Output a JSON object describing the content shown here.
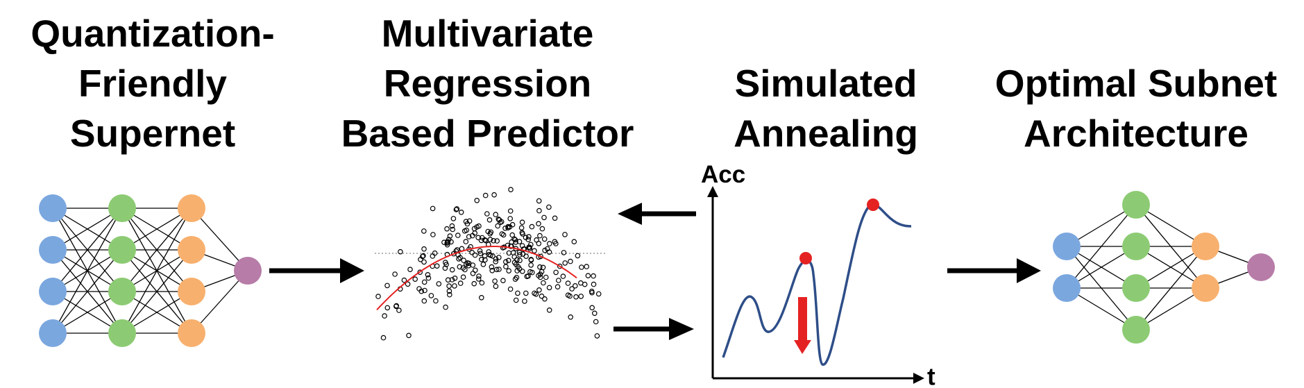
{
  "stages": [
    {
      "title": "Quantization-\nFriendly\nSupernet"
    },
    {
      "title": "Multivariate\nRegression\nBased Predictor"
    },
    {
      "title": "Simulated\nAnnealing"
    },
    {
      "title": "Optimal Subnet\nArchitecture"
    }
  ],
  "annealing_plot": {
    "y_label": "Acc",
    "x_label": "t"
  },
  "colors": {
    "blue": "#7BA7DF",
    "green": "#8CCB73",
    "orange": "#F8B06E",
    "purple": "#B77CA8",
    "curve": "#2E4E88",
    "highlight": "#E52222",
    "fit": "#E52222"
  }
}
